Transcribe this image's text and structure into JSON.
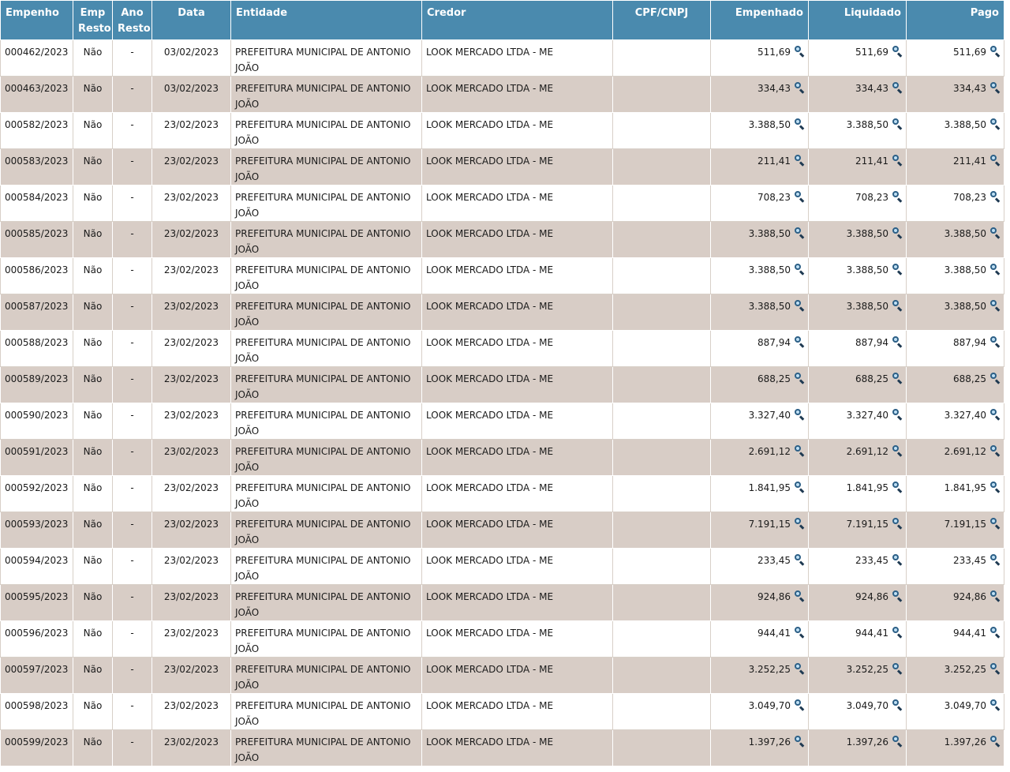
{
  "table": {
    "headers": {
      "empenho": "Empenho",
      "emp_resto": "Emp Resto",
      "ano_resto": "Ano Resto",
      "data": "Data",
      "entidade": "Entidade",
      "credor": "Credor",
      "cpf_cnpj": "CPF/CNPJ",
      "empenhado": "Empenhado",
      "liquidado": "Liquidado",
      "pago": "Pago"
    },
    "detail_icon": "magnifier-icon",
    "rows": [
      {
        "empenho": "000462/2023",
        "emp_resto": "Não",
        "ano_resto": "-",
        "data": "03/02/2023",
        "entidade": "PREFEITURA MUNICIPAL DE ANTONIO JOÃO",
        "credor": "LOOK MERCADO LTDA - ME",
        "cpf_cnpj": "",
        "empenhado": "511,69",
        "liquidado": "511,69",
        "pago": "511,69"
      },
      {
        "empenho": "000463/2023",
        "emp_resto": "Não",
        "ano_resto": "-",
        "data": "03/02/2023",
        "entidade": "PREFEITURA MUNICIPAL DE ANTONIO JOÃO",
        "credor": "LOOK MERCADO LTDA - ME",
        "cpf_cnpj": "",
        "empenhado": "334,43",
        "liquidado": "334,43",
        "pago": "334,43"
      },
      {
        "empenho": "000582/2023",
        "emp_resto": "Não",
        "ano_resto": "-",
        "data": "23/02/2023",
        "entidade": "PREFEITURA MUNICIPAL DE ANTONIO JOÃO",
        "credor": "LOOK MERCADO LTDA - ME",
        "cpf_cnpj": "",
        "empenhado": "3.388,50",
        "liquidado": "3.388,50",
        "pago": "3.388,50"
      },
      {
        "empenho": "000583/2023",
        "emp_resto": "Não",
        "ano_resto": "-",
        "data": "23/02/2023",
        "entidade": "PREFEITURA MUNICIPAL DE ANTONIO JOÃO",
        "credor": "LOOK MERCADO LTDA - ME",
        "cpf_cnpj": "",
        "empenhado": "211,41",
        "liquidado": "211,41",
        "pago": "211,41"
      },
      {
        "empenho": "000584/2023",
        "emp_resto": "Não",
        "ano_resto": "-",
        "data": "23/02/2023",
        "entidade": "PREFEITURA MUNICIPAL DE ANTONIO JOÃO",
        "credor": "LOOK MERCADO LTDA - ME",
        "cpf_cnpj": "",
        "empenhado": "708,23",
        "liquidado": "708,23",
        "pago": "708,23"
      },
      {
        "empenho": "000585/2023",
        "emp_resto": "Não",
        "ano_resto": "-",
        "data": "23/02/2023",
        "entidade": "PREFEITURA MUNICIPAL DE ANTONIO JOÃO",
        "credor": "LOOK MERCADO LTDA - ME",
        "cpf_cnpj": "",
        "empenhado": "3.388,50",
        "liquidado": "3.388,50",
        "pago": "3.388,50"
      },
      {
        "empenho": "000586/2023",
        "emp_resto": "Não",
        "ano_resto": "-",
        "data": "23/02/2023",
        "entidade": "PREFEITURA MUNICIPAL DE ANTONIO JOÃO",
        "credor": "LOOK MERCADO LTDA - ME",
        "cpf_cnpj": "",
        "empenhado": "3.388,50",
        "liquidado": "3.388,50",
        "pago": "3.388,50"
      },
      {
        "empenho": "000587/2023",
        "emp_resto": "Não",
        "ano_resto": "-",
        "data": "23/02/2023",
        "entidade": "PREFEITURA MUNICIPAL DE ANTONIO JOÃO",
        "credor": "LOOK MERCADO LTDA - ME",
        "cpf_cnpj": "",
        "empenhado": "3.388,50",
        "liquidado": "3.388,50",
        "pago": "3.388,50"
      },
      {
        "empenho": "000588/2023",
        "emp_resto": "Não",
        "ano_resto": "-",
        "data": "23/02/2023",
        "entidade": "PREFEITURA MUNICIPAL DE ANTONIO JOÃO",
        "credor": "LOOK MERCADO LTDA - ME",
        "cpf_cnpj": "",
        "empenhado": "887,94",
        "liquidado": "887,94",
        "pago": "887,94"
      },
      {
        "empenho": "000589/2023",
        "emp_resto": "Não",
        "ano_resto": "-",
        "data": "23/02/2023",
        "entidade": "PREFEITURA MUNICIPAL DE ANTONIO JOÃO",
        "credor": "LOOK MERCADO LTDA - ME",
        "cpf_cnpj": "",
        "empenhado": "688,25",
        "liquidado": "688,25",
        "pago": "688,25"
      },
      {
        "empenho": "000590/2023",
        "emp_resto": "Não",
        "ano_resto": "-",
        "data": "23/02/2023",
        "entidade": "PREFEITURA MUNICIPAL DE ANTONIO JOÃO",
        "credor": "LOOK MERCADO LTDA - ME",
        "cpf_cnpj": "",
        "empenhado": "3.327,40",
        "liquidado": "3.327,40",
        "pago": "3.327,40"
      },
      {
        "empenho": "000591/2023",
        "emp_resto": "Não",
        "ano_resto": "-",
        "data": "23/02/2023",
        "entidade": "PREFEITURA MUNICIPAL DE ANTONIO JOÃO",
        "credor": "LOOK MERCADO LTDA - ME",
        "cpf_cnpj": "",
        "empenhado": "2.691,12",
        "liquidado": "2.691,12",
        "pago": "2.691,12"
      },
      {
        "empenho": "000592/2023",
        "emp_resto": "Não",
        "ano_resto": "-",
        "data": "23/02/2023",
        "entidade": "PREFEITURA MUNICIPAL DE ANTONIO JOÃO",
        "credor": "LOOK MERCADO LTDA - ME",
        "cpf_cnpj": "",
        "empenhado": "1.841,95",
        "liquidado": "1.841,95",
        "pago": "1.841,95"
      },
      {
        "empenho": "000593/2023",
        "emp_resto": "Não",
        "ano_resto": "-",
        "data": "23/02/2023",
        "entidade": "PREFEITURA MUNICIPAL DE ANTONIO JOÃO",
        "credor": "LOOK MERCADO LTDA - ME",
        "cpf_cnpj": "",
        "empenhado": "7.191,15",
        "liquidado": "7.191,15",
        "pago": "7.191,15"
      },
      {
        "empenho": "000594/2023",
        "emp_resto": "Não",
        "ano_resto": "-",
        "data": "23/02/2023",
        "entidade": "PREFEITURA MUNICIPAL DE ANTONIO JOÃO",
        "credor": "LOOK MERCADO LTDA - ME",
        "cpf_cnpj": "",
        "empenhado": "233,45",
        "liquidado": "233,45",
        "pago": "233,45"
      },
      {
        "empenho": "000595/2023",
        "emp_resto": "Não",
        "ano_resto": "-",
        "data": "23/02/2023",
        "entidade": "PREFEITURA MUNICIPAL DE ANTONIO JOÃO",
        "credor": "LOOK MERCADO LTDA - ME",
        "cpf_cnpj": "",
        "empenhado": "924,86",
        "liquidado": "924,86",
        "pago": "924,86"
      },
      {
        "empenho": "000596/2023",
        "emp_resto": "Não",
        "ano_resto": "-",
        "data": "23/02/2023",
        "entidade": "PREFEITURA MUNICIPAL DE ANTONIO JOÃO",
        "credor": "LOOK MERCADO LTDA - ME",
        "cpf_cnpj": "",
        "empenhado": "944,41",
        "liquidado": "944,41",
        "pago": "944,41"
      },
      {
        "empenho": "000597/2023",
        "emp_resto": "Não",
        "ano_resto": "-",
        "data": "23/02/2023",
        "entidade": "PREFEITURA MUNICIPAL DE ANTONIO JOÃO",
        "credor": "LOOK MERCADO LTDA - ME",
        "cpf_cnpj": "",
        "empenhado": "3.252,25",
        "liquidado": "3.252,25",
        "pago": "3.252,25"
      },
      {
        "empenho": "000598/2023",
        "emp_resto": "Não",
        "ano_resto": "-",
        "data": "23/02/2023",
        "entidade": "PREFEITURA MUNICIPAL DE ANTONIO JOÃO",
        "credor": "LOOK MERCADO LTDA - ME",
        "cpf_cnpj": "",
        "empenhado": "3.049,70",
        "liquidado": "3.049,70",
        "pago": "3.049,70"
      },
      {
        "empenho": "000599/2023",
        "emp_resto": "Não",
        "ano_resto": "-",
        "data": "23/02/2023",
        "entidade": "PREFEITURA MUNICIPAL DE ANTONIO JOÃO",
        "credor": "LOOK MERCADO LTDA - ME",
        "cpf_cnpj": "",
        "empenhado": "1.397,26",
        "liquidado": "1.397,26",
        "pago": "1.397,26"
      }
    ]
  },
  "colors": {
    "header_bg": "#4a8aae",
    "row_alt_bg": "#d8cdc6",
    "icon": "#2c5f86"
  }
}
